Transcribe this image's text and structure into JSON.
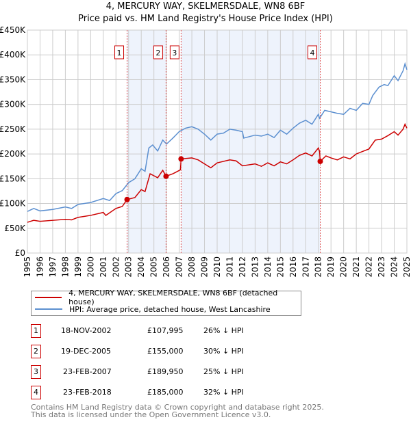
{
  "title": "4, MERCURY WAY, SKELMERSDALE, WN8 6BF",
  "subtitle": "Price paid vs. HM Land Registry's House Price Index (HPI)",
  "chart_data": {
    "type": "line",
    "ylim": [
      0,
      450000
    ],
    "xlim": [
      1995,
      2025
    ],
    "yticks": [
      {
        "v": 0,
        "l": "£0"
      },
      {
        "v": 50000,
        "l": "£50K"
      },
      {
        "v": 100000,
        "l": "£100K"
      },
      {
        "v": 150000,
        "l": "£150K"
      },
      {
        "v": 200000,
        "l": "£200K"
      },
      {
        "v": 250000,
        "l": "£250K"
      },
      {
        "v": 300000,
        "l": "£300K"
      },
      {
        "v": 350000,
        "l": "£350K"
      },
      {
        "v": 400000,
        "l": "£400K"
      },
      {
        "v": 450000,
        "l": "£450K"
      }
    ],
    "xticks": [
      "1995",
      "1996",
      "1997",
      "1998",
      "1999",
      "2000",
      "2001",
      "2002",
      "2003",
      "2004",
      "2005",
      "2006",
      "2007",
      "2008",
      "2009",
      "2010",
      "2011",
      "2012",
      "2013",
      "2014",
      "2015",
      "2016",
      "2017",
      "2018",
      "2019",
      "2020",
      "2021",
      "2022",
      "2023",
      "2024",
      "2025"
    ],
    "grid": true,
    "shaded_ranges": [
      [
        2002.88,
        2005.96
      ],
      [
        2007.15,
        2018.15
      ]
    ],
    "series": [
      {
        "name": "4, MERCURY WAY, SKELMERSDALE, WN8 6BF (detached house)",
        "color": "#cc0000",
        "x": [
          1995,
          1995.5,
          1996,
          1997,
          1998,
          1998.5,
          1999,
          2000,
          2001,
          2001.2,
          2002,
          2002.5,
          2002.88,
          2003.5,
          2004,
          2004.3,
          2004.7,
          2005.3,
          2005.7,
          2005.96,
          2006.5,
          2007.1,
          2007.15,
          2008,
          2008.5,
          2009,
          2009.5,
          2010,
          2011,
          2011.5,
          2012,
          2013,
          2013.5,
          2014,
          2014.5,
          2015,
          2015.5,
          2016,
          2016.5,
          2017,
          2017.5,
          2018,
          2018.1,
          2018.15,
          2018.6,
          2019,
          2019.5,
          2020,
          2020.5,
          2021,
          2021.5,
          2022,
          2022.5,
          2023,
          2023.5,
          2024,
          2024.3,
          2024.7,
          2024.85,
          2025
        ],
        "y": [
          62000,
          66000,
          64000,
          66000,
          68000,
          67000,
          72000,
          76000,
          82000,
          76000,
          90000,
          94000,
          107995,
          112000,
          128000,
          124000,
          160000,
          152000,
          167000,
          155000,
          160000,
          168000,
          189950,
          192000,
          188000,
          180000,
          172000,
          182000,
          188000,
          186000,
          176000,
          180000,
          175000,
          182000,
          176000,
          184000,
          180000,
          188000,
          197000,
          202000,
          196000,
          212000,
          205000,
          185000,
          196000,
          192000,
          188000,
          194000,
          190000,
          200000,
          205000,
          210000,
          228000,
          230000,
          237000,
          245000,
          238000,
          250000,
          260000,
          252000
        ]
      },
      {
        "name": "HPI: Average price, detached house, West Lancashire",
        "color": "#5b8fd0",
        "x": [
          1995,
          1995.5,
          1996,
          1997,
          1998,
          1998.5,
          1999,
          2000,
          2001,
          2001.5,
          2002,
          2002.5,
          2003,
          2003.5,
          2004,
          2004.3,
          2004.6,
          2004.9,
          2005.3,
          2005.7,
          2006,
          2006.5,
          2007,
          2007.5,
          2008,
          2008.5,
          2009,
          2009.5,
          2010,
          2010.5,
          2011,
          2011.5,
          2012,
          2012.1,
          2013,
          2013.5,
          2014,
          2014.5,
          2015,
          2015.5,
          2016,
          2016.5,
          2017,
          2017.5,
          2018,
          2018.1,
          2018.5,
          2019,
          2019.5,
          2020,
          2020.5,
          2021,
          2021.5,
          2022,
          2022.3,
          2022.8,
          2023.2,
          2023.5,
          2024,
          2024.3,
          2024.7,
          2024.85,
          2025
        ],
        "y": [
          84000,
          90000,
          85000,
          88000,
          93000,
          90000,
          98000,
          102000,
          110000,
          106000,
          120000,
          126000,
          142000,
          150000,
          170000,
          165000,
          212000,
          218000,
          206000,
          228000,
          220000,
          232000,
          245000,
          252000,
          255000,
          250000,
          240000,
          228000,
          240000,
          242000,
          250000,
          248000,
          245000,
          232000,
          238000,
          236000,
          240000,
          233000,
          248000,
          240000,
          252000,
          262000,
          268000,
          260000,
          280000,
          272000,
          288000,
          285000,
          282000,
          280000,
          292000,
          288000,
          302000,
          300000,
          318000,
          335000,
          340000,
          338000,
          358000,
          348000,
          368000,
          382000,
          370000
        ]
      }
    ],
    "sales": [
      {
        "n": "1",
        "x": 2002.88,
        "y": 107995,
        "date": "18-NOV-2002",
        "price": "£107,995",
        "hpi": "26% ↓ HPI"
      },
      {
        "n": "2",
        "x": 2005.96,
        "y": 155000,
        "date": "19-DEC-2005",
        "price": "£155,000",
        "hpi": "30% ↓ HPI"
      },
      {
        "n": "3",
        "x": 2007.15,
        "y": 189950,
        "date": "23-FEB-2007",
        "price": "£189,950",
        "hpi": "25% ↓ HPI"
      },
      {
        "n": "4",
        "x": 2018.15,
        "y": 185000,
        "date": "23-FEB-2018",
        "price": "£185,000",
        "hpi": "32% ↓ HPI"
      }
    ]
  },
  "footer": [
    "Contains HM Land Registry data © Crown copyright and database right 2025.",
    "This data is licensed under the Open Government Licence v3.0."
  ]
}
